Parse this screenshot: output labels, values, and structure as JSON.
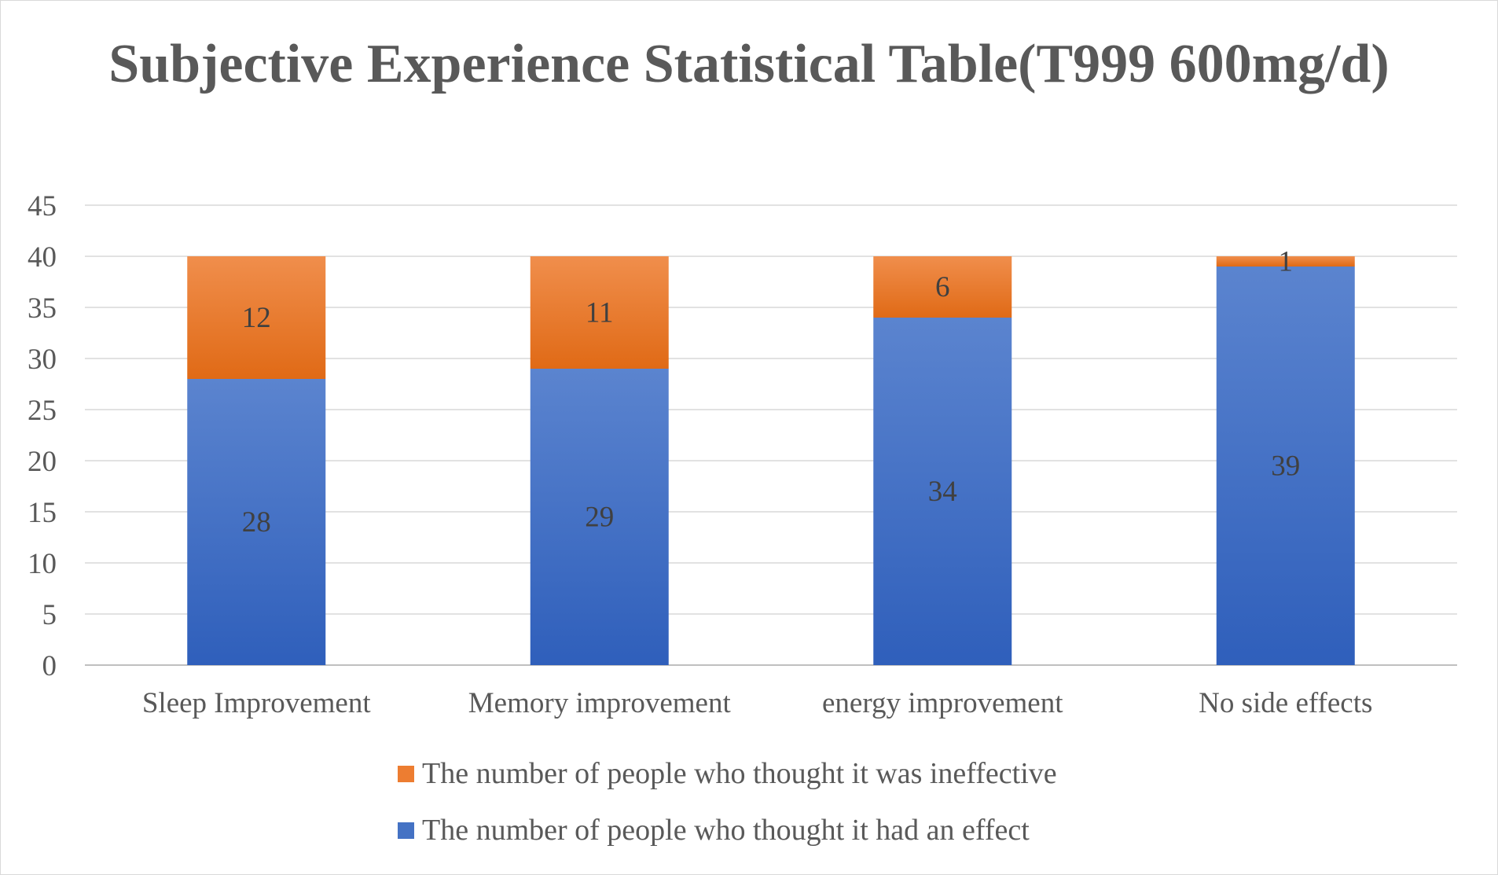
{
  "chart_data": {
    "type": "bar",
    "stacked": true,
    "title": "Subjective Experience Statistical Table(T999 600mg/d)",
    "xlabel": "",
    "ylabel": "",
    "categories": [
      "Sleep Improvement",
      "Memory improvement",
      "energy improvement",
      "No side effects"
    ],
    "series": [
      {
        "name": "The number of people who thought it had an effect",
        "values": [
          28,
          29,
          34,
          39
        ],
        "color": "#4472C4"
      },
      {
        "name": "The number of people who thought it was ineffective",
        "values": [
          12,
          11,
          6,
          1
        ],
        "color": "#ED7D31"
      }
    ],
    "ylim": [
      0,
      45
    ],
    "yticks": [
      0,
      5,
      10,
      15,
      20,
      25,
      30,
      35,
      40,
      45
    ],
    "grid": true,
    "data_labels": true,
    "legend_position": "bottom",
    "legend_order": [
      1,
      0
    ]
  }
}
